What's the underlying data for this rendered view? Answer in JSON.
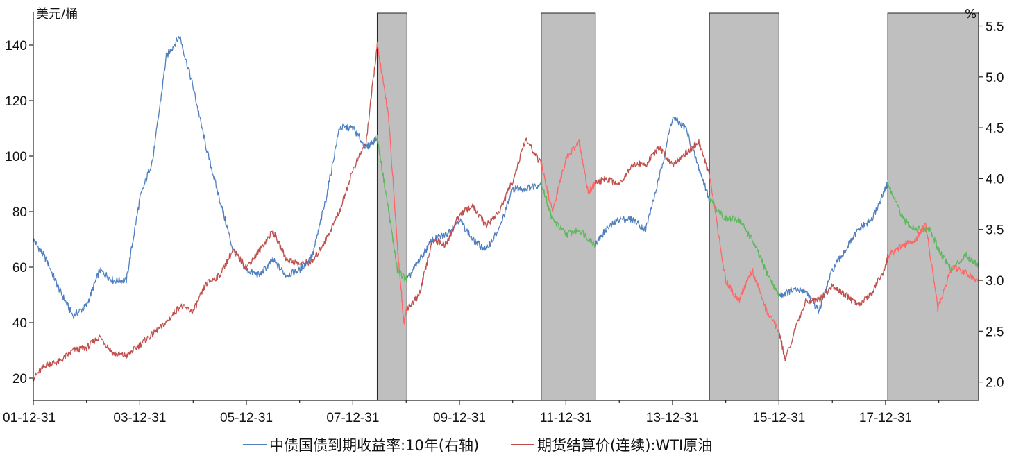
{
  "chart_data": {
    "type": "line",
    "left_unit": "美元/桶",
    "right_unit": "%",
    "x_tick_labels": [
      "01-12-31",
      "03-12-31",
      "05-12-31",
      "07-12-31",
      "09-12-31",
      "11-12-31",
      "13-12-31",
      "15-12-31",
      "17-12-31"
    ],
    "x_range": [
      "2001-12-31",
      "2019-09-30"
    ],
    "left_axis": {
      "ticks": [
        20,
        40,
        60,
        80,
        100,
        120,
        140
      ],
      "range": [
        12,
        152
      ]
    },
    "right_axis": {
      "ticks": [
        "2.0",
        "2.5",
        "3.0",
        "3.5",
        "4.0",
        "4.5",
        "5.0",
        "5.5"
      ],
      "range": [
        1.82,
        5.64
      ]
    },
    "shaded_periods": [
      [
        "2008-06-15",
        "2009-01-05"
      ],
      [
        "2011-07-15",
        "2012-07-20"
      ],
      [
        "2014-09-10",
        "2015-12-31"
      ],
      [
        "2018-01-15",
        "2019-09-30"
      ]
    ],
    "highlight_colors": {
      "bond_in_shaded": "#5cb85c",
      "oil_in_shaded": "#ff6666"
    },
    "grid": false,
    "legend_position": "bottom",
    "series": [
      {
        "name": "中债国债到期收益率:10年(右轴)",
        "axis": "right",
        "color": "#4f7fbf",
        "points": [
          [
            "2001-12-31",
            3.4
          ],
          [
            "2002-03-31",
            3.2
          ],
          [
            "2002-06-30",
            2.9
          ],
          [
            "2002-09-30",
            2.65
          ],
          [
            "2002-12-31",
            2.75
          ],
          [
            "2003-03-31",
            3.1
          ],
          [
            "2003-06-30",
            3.0
          ],
          [
            "2003-09-30",
            3.0
          ],
          [
            "2003-12-31",
            3.8
          ],
          [
            "2004-03-31",
            4.2
          ],
          [
            "2004-06-30",
            5.2
          ],
          [
            "2004-09-30",
            5.4
          ],
          [
            "2004-12-31",
            4.9
          ],
          [
            "2005-03-31",
            4.3
          ],
          [
            "2005-06-30",
            3.8
          ],
          [
            "2005-09-30",
            3.3
          ],
          [
            "2005-12-31",
            3.1
          ],
          [
            "2006-03-31",
            3.05
          ],
          [
            "2006-06-30",
            3.2
          ],
          [
            "2006-09-30",
            3.05
          ],
          [
            "2006-12-31",
            3.1
          ],
          [
            "2007-03-31",
            3.25
          ],
          [
            "2007-06-30",
            3.8
          ],
          [
            "2007-09-30",
            4.5
          ],
          [
            "2007-12-31",
            4.5
          ],
          [
            "2008-03-31",
            4.3
          ],
          [
            "2008-06-15",
            4.4
          ],
          [
            "2008-08-31",
            3.7
          ],
          [
            "2008-10-31",
            3.1
          ],
          [
            "2009-01-05",
            3.0
          ],
          [
            "2009-03-31",
            3.2
          ],
          [
            "2009-06-30",
            3.4
          ],
          [
            "2009-09-30",
            3.45
          ],
          [
            "2009-12-31",
            3.6
          ],
          [
            "2010-03-31",
            3.4
          ],
          [
            "2010-06-30",
            3.3
          ],
          [
            "2010-09-30",
            3.5
          ],
          [
            "2010-12-31",
            3.9
          ],
          [
            "2011-03-31",
            3.9
          ],
          [
            "2011-07-15",
            3.95
          ],
          [
            "2011-09-30",
            3.6
          ],
          [
            "2011-12-31",
            3.45
          ],
          [
            "2012-03-31",
            3.5
          ],
          [
            "2012-07-20",
            3.35
          ],
          [
            "2012-09-30",
            3.5
          ],
          [
            "2012-12-31",
            3.6
          ],
          [
            "2013-03-31",
            3.6
          ],
          [
            "2013-06-30",
            3.5
          ],
          [
            "2013-09-30",
            4.0
          ],
          [
            "2013-12-31",
            4.6
          ],
          [
            "2014-03-31",
            4.5
          ],
          [
            "2014-06-30",
            4.1
          ],
          [
            "2014-09-10",
            3.8
          ],
          [
            "2014-12-31",
            3.6
          ],
          [
            "2015-03-31",
            3.6
          ],
          [
            "2015-06-30",
            3.4
          ],
          [
            "2015-09-30",
            3.1
          ],
          [
            "2015-12-31",
            2.85
          ],
          [
            "2016-03-31",
            2.9
          ],
          [
            "2016-06-30",
            2.9
          ],
          [
            "2016-09-30",
            2.7
          ],
          [
            "2016-12-31",
            3.1
          ],
          [
            "2017-03-31",
            3.3
          ],
          [
            "2017-06-30",
            3.5
          ],
          [
            "2017-09-30",
            3.6
          ],
          [
            "2017-12-31",
            3.9
          ],
          [
            "2018-01-15",
            3.95
          ],
          [
            "2018-04-30",
            3.6
          ],
          [
            "2018-07-31",
            3.5
          ],
          [
            "2018-10-31",
            3.5
          ],
          [
            "2018-12-31",
            3.3
          ],
          [
            "2019-03-31",
            3.1
          ],
          [
            "2019-06-30",
            3.25
          ],
          [
            "2019-09-30",
            3.15
          ]
        ]
      },
      {
        "name": "期货结算价(连续):WTI原油",
        "axis": "left",
        "color": "#c0504d",
        "points": [
          [
            "2001-12-31",
            20
          ],
          [
            "2002-03-31",
            25
          ],
          [
            "2002-06-30",
            26
          ],
          [
            "2002-09-30",
            30
          ],
          [
            "2002-12-31",
            31
          ],
          [
            "2003-03-31",
            35
          ],
          [
            "2003-06-30",
            29
          ],
          [
            "2003-09-30",
            28
          ],
          [
            "2003-12-31",
            32
          ],
          [
            "2004-03-31",
            36
          ],
          [
            "2004-06-30",
            40
          ],
          [
            "2004-09-30",
            46
          ],
          [
            "2004-12-31",
            44
          ],
          [
            "2005-03-31",
            54
          ],
          [
            "2005-06-30",
            57
          ],
          [
            "2005-09-30",
            66
          ],
          [
            "2005-12-31",
            60
          ],
          [
            "2006-03-31",
            66
          ],
          [
            "2006-06-30",
            73
          ],
          [
            "2006-09-30",
            63
          ],
          [
            "2006-12-31",
            61
          ],
          [
            "2007-03-31",
            62
          ],
          [
            "2007-06-30",
            70
          ],
          [
            "2007-09-30",
            80
          ],
          [
            "2007-12-31",
            95
          ],
          [
            "2008-03-31",
            105
          ],
          [
            "2008-06-15",
            140
          ],
          [
            "2008-08-31",
            115
          ],
          [
            "2008-10-31",
            68
          ],
          [
            "2008-12-15",
            40
          ],
          [
            "2009-01-05",
            45
          ],
          [
            "2009-03-31",
            50
          ],
          [
            "2009-06-30",
            70
          ],
          [
            "2009-09-30",
            68
          ],
          [
            "2009-12-31",
            79
          ],
          [
            "2010-03-31",
            82
          ],
          [
            "2010-06-30",
            75
          ],
          [
            "2010-09-30",
            80
          ],
          [
            "2010-12-31",
            91
          ],
          [
            "2011-03-31",
            106
          ],
          [
            "2011-07-15",
            97
          ],
          [
            "2011-09-30",
            80
          ],
          [
            "2011-12-31",
            99
          ],
          [
            "2012-03-31",
            105
          ],
          [
            "2012-05-31",
            87
          ],
          [
            "2012-07-20",
            90
          ],
          [
            "2012-09-30",
            92
          ],
          [
            "2012-12-31",
            90
          ],
          [
            "2013-03-31",
            97
          ],
          [
            "2013-06-30",
            97
          ],
          [
            "2013-09-30",
            103
          ],
          [
            "2013-12-31",
            97
          ],
          [
            "2014-03-31",
            101
          ],
          [
            "2014-06-30",
            105
          ],
          [
            "2014-09-10",
            93
          ],
          [
            "2014-12-31",
            55
          ],
          [
            "2015-03-31",
            48
          ],
          [
            "2015-06-30",
            59
          ],
          [
            "2015-09-30",
            45
          ],
          [
            "2015-12-31",
            37
          ],
          [
            "2016-02-11",
            27
          ],
          [
            "2016-06-30",
            48
          ],
          [
            "2016-09-30",
            48
          ],
          [
            "2016-12-31",
            53
          ],
          [
            "2017-03-31",
            50
          ],
          [
            "2017-06-30",
            46
          ],
          [
            "2017-09-30",
            51
          ],
          [
            "2017-12-31",
            60
          ],
          [
            "2018-01-15",
            64
          ],
          [
            "2018-04-30",
            68
          ],
          [
            "2018-07-31",
            70
          ],
          [
            "2018-10-03",
            76
          ],
          [
            "2018-12-24",
            45
          ],
          [
            "2019-03-31",
            60
          ],
          [
            "2019-06-30",
            58
          ],
          [
            "2019-09-30",
            55
          ]
        ]
      }
    ]
  }
}
